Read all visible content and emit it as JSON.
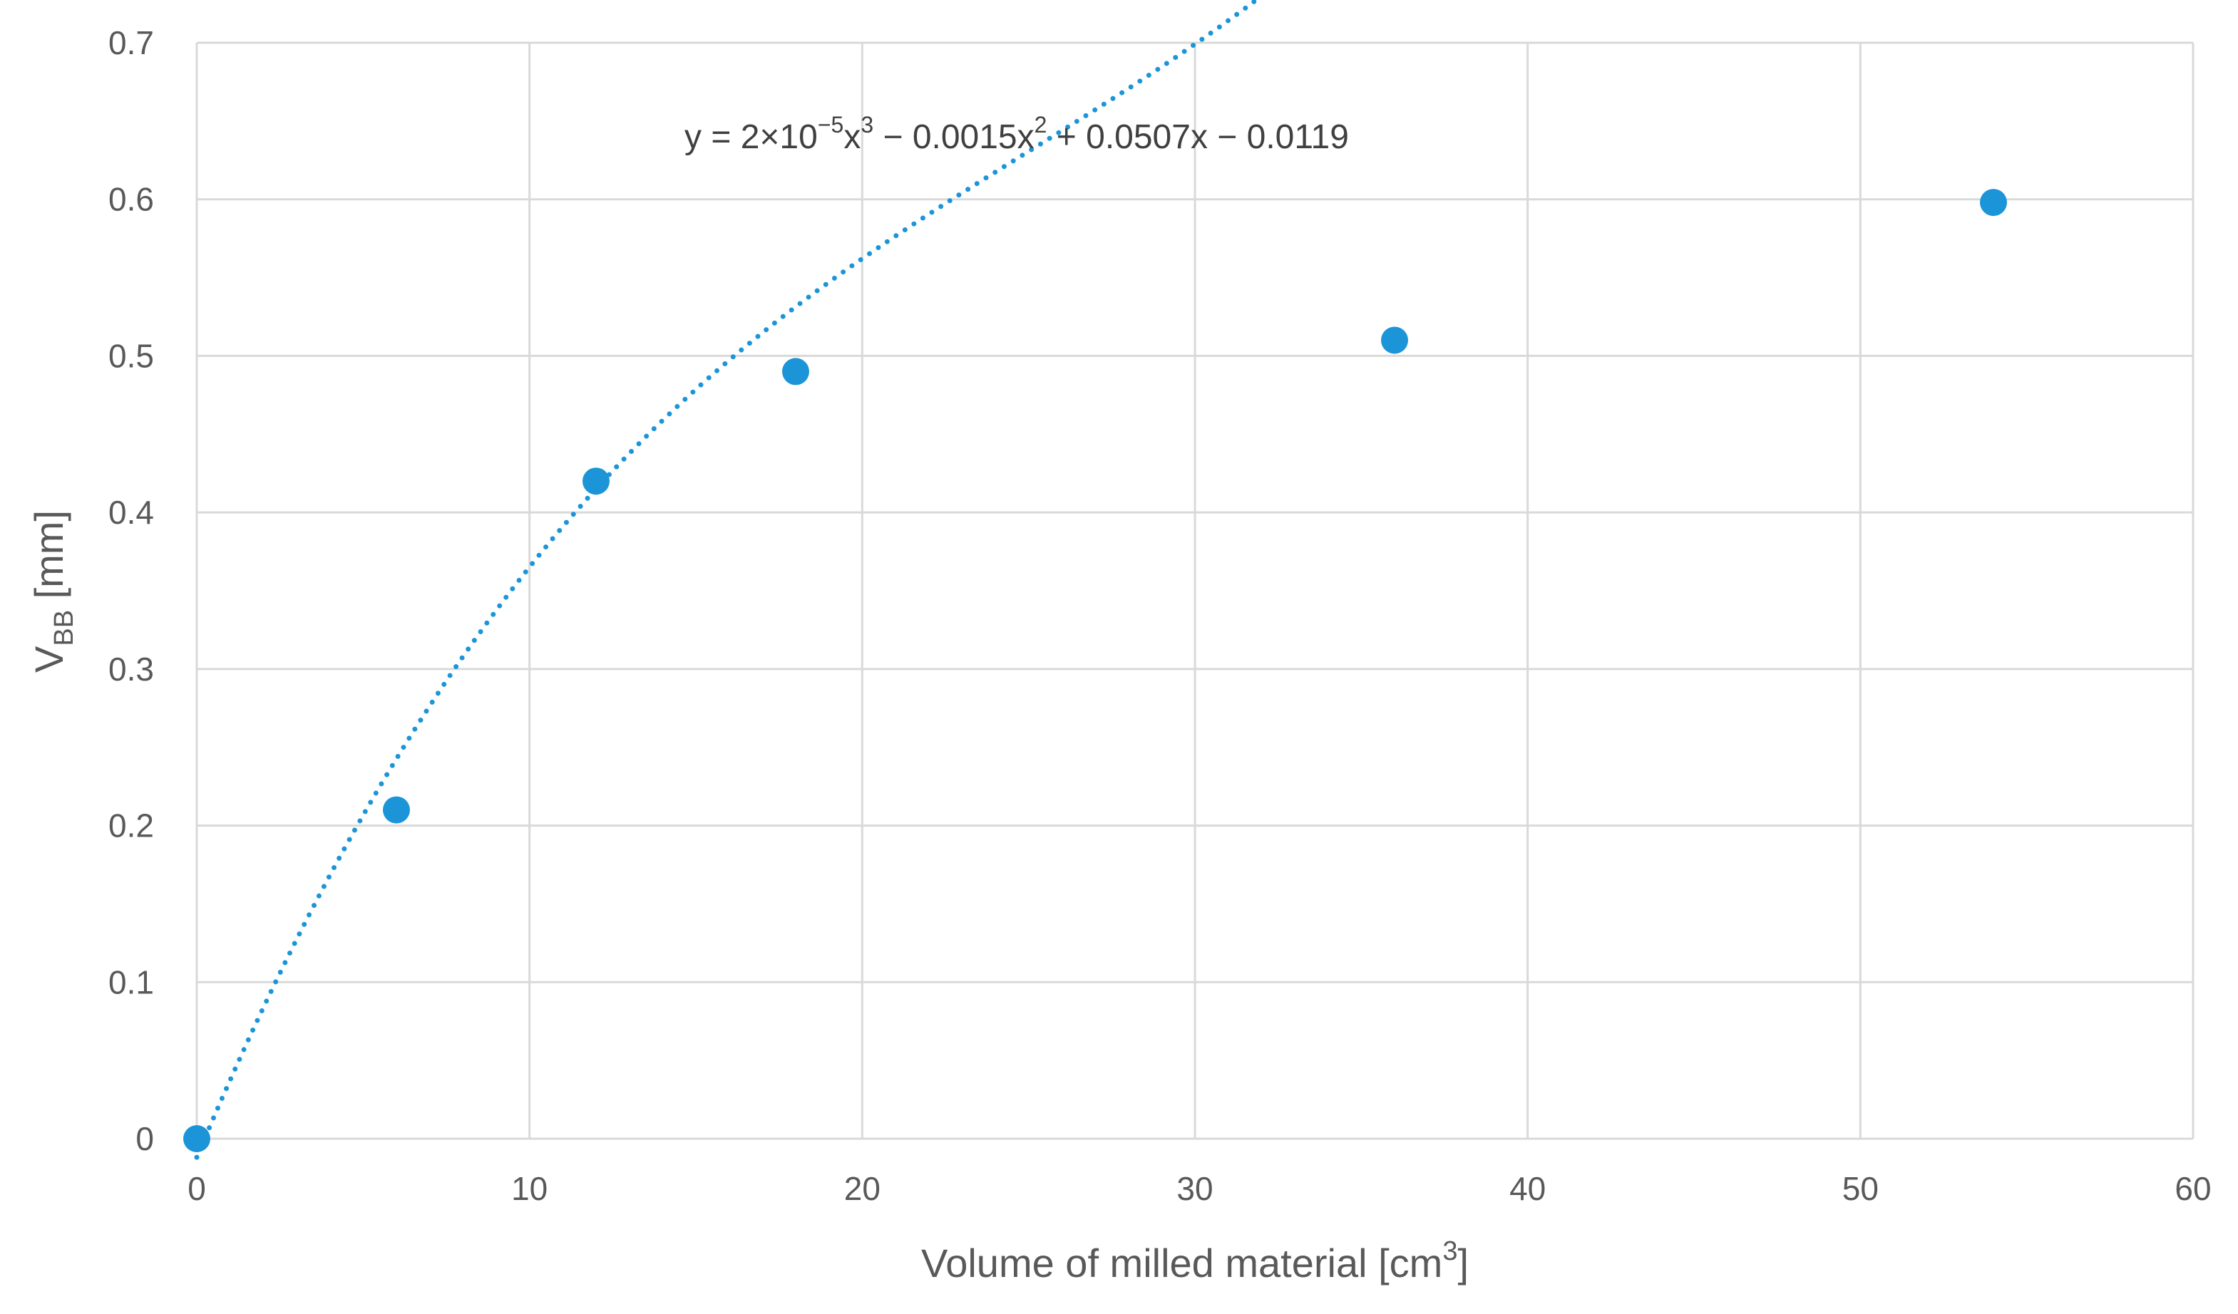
{
  "chart_data": {
    "type": "scatter",
    "xlabel": "Volume of milled material [cm",
    "xlabel_sup": "3",
    "xlabel_end": "]",
    "ylabel": "V",
    "ylabel_sub": "BB",
    "ylabel_end": " [mm]",
    "xlim": [
      0,
      60
    ],
    "ylim": [
      0,
      0.7
    ],
    "x_ticks": [
      0,
      10,
      20,
      30,
      40,
      50,
      60
    ],
    "y_ticks": [
      0,
      0.1,
      0.2,
      0.3,
      0.4,
      0.5,
      0.6,
      0.7
    ],
    "grid": true,
    "legend": "none",
    "series": [
      {
        "x": [
          0,
          6,
          12,
          18,
          36,
          54
        ],
        "y": [
          0,
          0.21,
          0.42,
          0.49,
          0.51,
          0.598
        ]
      }
    ],
    "trendline": {
      "type": "polynomial",
      "order": 3,
      "coefficients": [
        2e-05,
        -0.0015,
        0.0507,
        -0.0119
      ],
      "style": "dotted",
      "equation_parts": [
        "y = 2×10",
        "−5",
        "x",
        "3",
        " − 0.0015x",
        "2",
        " + 0.0507x − 0.0119"
      ]
    },
    "colors": {
      "marker": "#1b95d8",
      "trendline": "#1b95d8",
      "grid": "#d9d9d9",
      "text": "#595959"
    }
  }
}
